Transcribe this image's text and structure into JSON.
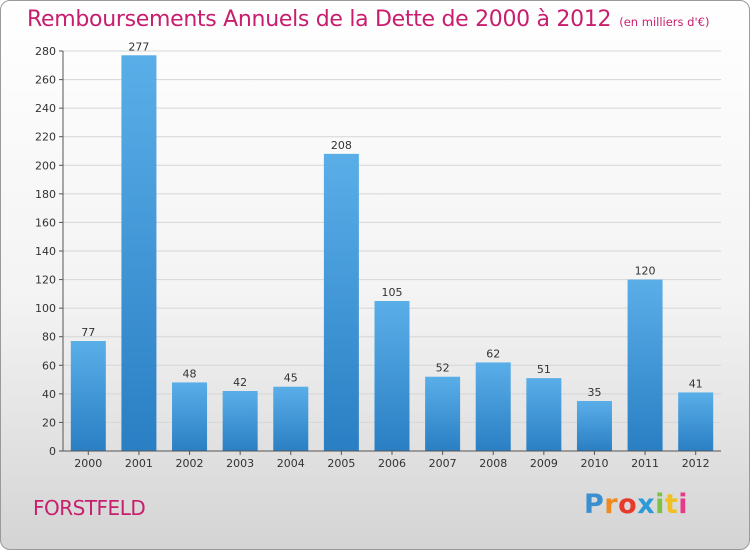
{
  "chart_data": {
    "type": "bar",
    "title": "Remboursements Annuels de la Dette de 2000 à 2012",
    "subtitle": "(en milliers d'€)",
    "categories": [
      "2000",
      "2001",
      "2002",
      "2003",
      "2004",
      "2005",
      "2006",
      "2007",
      "2008",
      "2009",
      "2010",
      "2011",
      "2012"
    ],
    "values": [
      77,
      277,
      48,
      42,
      45,
      208,
      105,
      52,
      62,
      51,
      35,
      120,
      41
    ],
    "ylim": [
      0,
      280
    ],
    "yticks": [
      0,
      20,
      40,
      60,
      80,
      100,
      120,
      140,
      160,
      180,
      200,
      220,
      240,
      260,
      280
    ],
    "grid": true,
    "bar_color_top": "#5aaee8",
    "bar_color_bottom": "#2a7fc4",
    "data_labels": true
  },
  "commune": "FORSTFELD",
  "logo": {
    "text": "Proxiti",
    "letters": [
      "P",
      "r",
      "o",
      "x",
      "i",
      "t",
      "i"
    ],
    "colors": [
      "#3a8fd0",
      "#f08a1c",
      "#e83a2a",
      "#2c9ad8",
      "#7cc242",
      "#f0c020",
      "#e83a8a"
    ]
  },
  "colors": {
    "title": "#c81e6e",
    "grid": "#d6d6d6",
    "axis": "#555555"
  }
}
